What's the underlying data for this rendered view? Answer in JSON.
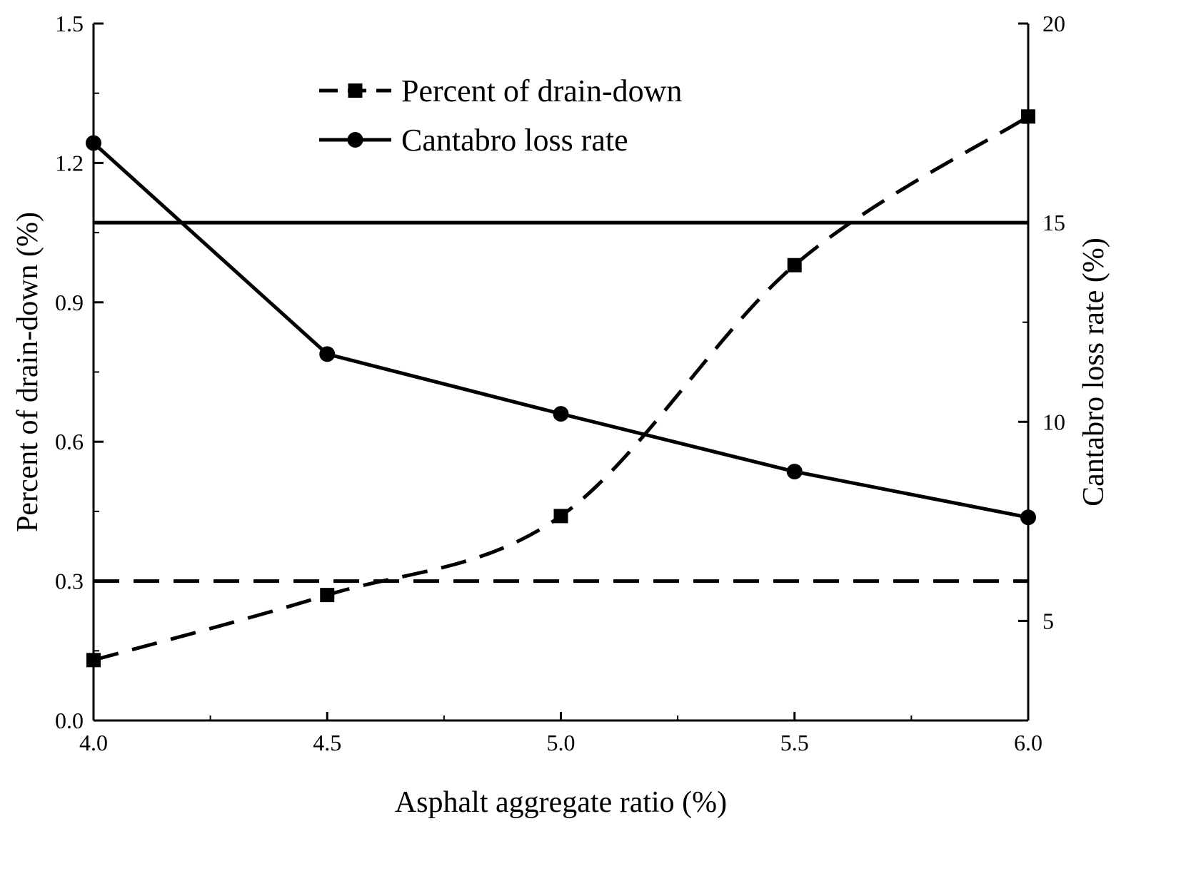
{
  "chart_data": {
    "type": "line",
    "x": [
      4.0,
      4.5,
      5.0,
      5.5,
      6.0
    ],
    "x_ticks": [
      "4.0",
      "4.5",
      "5.0",
      "5.5",
      "6.0"
    ],
    "xlabel": "Asphalt aggregate ratio (%)",
    "xlim": [
      4.0,
      6.0
    ],
    "y_left": {
      "label": "Percent of drain-down (%)",
      "lim": [
        0.0,
        1.5
      ],
      "ticks": [
        0.0,
        0.3,
        0.6,
        0.9,
        1.2,
        1.5
      ],
      "tick_labels": [
        "0.0",
        "0.3",
        "0.6",
        "0.9",
        "1.2",
        "1.5"
      ]
    },
    "y_right": {
      "label": "Cantabro loss rate (%)",
      "lim": [
        2.5,
        20
      ],
      "ticks": [
        5,
        10,
        15,
        20
      ],
      "tick_labels": [
        "5",
        "10",
        "15",
        "20"
      ]
    },
    "series": [
      {
        "name": "Percent of drain-down",
        "axis": "left",
        "style": "dashed",
        "marker": "square",
        "values": [
          0.13,
          0.27,
          0.44,
          0.98,
          1.3
        ]
      },
      {
        "name": "Cantabro loss rate",
        "axis": "right",
        "style": "solid",
        "marker": "circle",
        "values": [
          17.0,
          11.7,
          10.2,
          8.75,
          7.6
        ]
      }
    ],
    "reference_lines": [
      {
        "axis": "left",
        "value": 0.3,
        "style": "dashed"
      },
      {
        "axis": "right",
        "value": 15,
        "style": "solid"
      }
    ],
    "legend": {
      "position": "top-center",
      "entries": [
        "Percent of drain-down",
        "Cantabro loss rate"
      ]
    },
    "colors": {
      "line": "#000000",
      "background": "#ffffff"
    }
  }
}
